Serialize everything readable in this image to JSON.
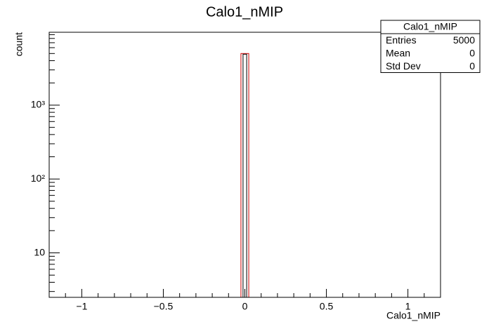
{
  "chart_data": {
    "type": "histogram",
    "title": "Calo1_nMIP",
    "x_label": "Calo1_nMIP",
    "y_label": "count",
    "bins": [
      -1.2,
      -0.024,
      0.024,
      1.2
    ],
    "values": [
      0,
      5000,
      0
    ],
    "color": "#cc0000",
    "xlim": [
      -1.2,
      1.2
    ],
    "xticks": [
      {
        "value": -1,
        "label": "−1"
      },
      {
        "value": -0.5,
        "label": "−0.5"
      },
      0,
      0.5,
      1
    ],
    "xticks_minor": [
      -1.2,
      -1.1,
      -0.9,
      -0.8,
      -0.7,
      -0.6,
      -0.4,
      -0.3,
      -0.2,
      -0.1,
      0.1,
      0.2,
      0.3,
      0.4,
      0.6,
      0.7,
      0.8,
      0.9,
      1.1,
      1.2
    ],
    "ylim": [
      2.5,
      9700
    ],
    "log_y": true,
    "yticks": [
      10,
      {
        "value": 100,
        "label": "10²"
      },
      {
        "value": 1000,
        "label": "10³"
      }
    ],
    "yticks_minor": [
      3,
      4,
      5,
      6,
      7,
      8,
      9,
      20,
      30,
      40,
      50,
      60,
      70,
      80,
      90,
      200,
      300,
      400,
      500,
      600,
      700,
      800,
      900,
      2000,
      3000,
      4000,
      5000,
      6000,
      7000,
      8000,
      9000
    ],
    "stats": {
      "name": "Calo1_nMIP",
      "rows": [
        [
          "Entries",
          "5000"
        ],
        [
          "Mean",
          "0"
        ],
        [
          "Std Dev",
          "0"
        ]
      ]
    }
  }
}
